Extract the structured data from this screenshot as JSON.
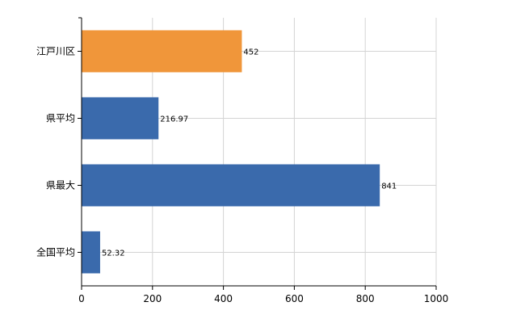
{
  "chart_data": {
    "type": "bar",
    "orientation": "horizontal",
    "categories": [
      "江戸川区",
      "県平均",
      "県最大",
      "全国平均"
    ],
    "values": [
      452,
      216.97,
      841,
      52.32
    ],
    "value_labels": [
      "452",
      "216.97",
      "841",
      "52.32"
    ],
    "colors": [
      "#f0963a",
      "#3a6aac",
      "#3a6aac",
      "#3a6aac"
    ],
    "xlim": [
      0,
      1000
    ],
    "xticks": [
      0,
      200,
      400,
      600,
      800,
      1000
    ],
    "xtick_labels": [
      "0",
      "200",
      "400",
      "600",
      "800",
      "1000"
    ],
    "grid": true,
    "legend": "none"
  }
}
